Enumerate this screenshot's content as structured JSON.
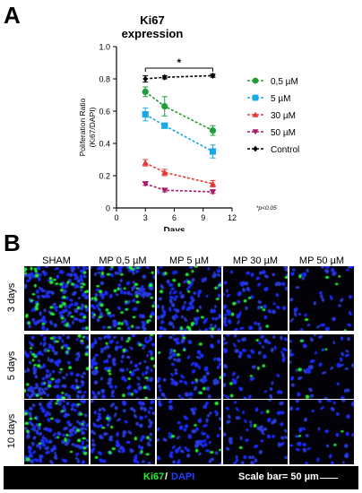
{
  "panel_a_letter": "A",
  "panel_b_letter": "B",
  "chart_data": {
    "type": "line",
    "title_line1": "Ki67",
    "title_line2": "expression",
    "xlabel": "Days",
    "ylabel_line1": "Poliferation Ratio",
    "ylabel_line2": "(Ki67/DAPI)",
    "xlim": [
      0,
      12
    ],
    "ylim": [
      0,
      1.0
    ],
    "x_ticks": [
      0,
      3,
      6,
      9,
      12
    ],
    "y_ticks": [
      0,
      0.2,
      0.4,
      0.6,
      0.8,
      1.0
    ],
    "x_tick_labels": [
      "0",
      "3",
      "6",
      "9",
      "12"
    ],
    "y_tick_labels": [
      "0",
      "0.2",
      "0.4",
      "0.6",
      "0.8",
      "1.0"
    ],
    "x": [
      3,
      5,
      10
    ],
    "series": [
      {
        "name": "0,5 µM",
        "color": "#1e9e3a",
        "marker": "circle",
        "values": [
          0.72,
          0.63,
          0.48
        ],
        "errors": [
          0.03,
          0.06,
          0.03
        ]
      },
      {
        "name": "5 µM",
        "color": "#1aa8e6",
        "marker": "square",
        "values": [
          0.58,
          0.51,
          0.35
        ],
        "errors": [
          0.04,
          0.01,
          0.04
        ]
      },
      {
        "name": "30 µM",
        "color": "#e53935",
        "marker": "triangle-up",
        "values": [
          0.28,
          0.22,
          0.15
        ],
        "errors": [
          0.02,
          0.02,
          0.02
        ]
      },
      {
        "name": "50 µM",
        "color": "#a8186a",
        "marker": "triangle-down",
        "values": [
          0.15,
          0.11,
          0.1
        ],
        "errors": [
          0.01,
          0.01,
          0.01
        ]
      },
      {
        "name": "Control",
        "color": "#000000",
        "marker": "diamond",
        "values": [
          0.8,
          0.81,
          0.82
        ],
        "errors": [
          0.02,
          0.01,
          0.01
        ]
      }
    ],
    "significance_bracket": {
      "from_x": 3,
      "to_x": 10,
      "label": "*"
    },
    "footnote": "*p<0.05",
    "legend_placement": "right",
    "grid": false
  },
  "micrograph_panel": {
    "column_labels": [
      "SHAM",
      "MP 0,5 µM",
      "MP 5 µM",
      "MP 30 µM",
      "MP 50 µM"
    ],
    "row_labels": [
      "3 days",
      "5 days",
      "10 days"
    ],
    "colors": {
      "nuclei": "#1a2cff",
      "ki67": "#22ee33",
      "background": "#020208"
    }
  },
  "footer": {
    "ki67_label": "Ki67",
    "slash": "/",
    "dapi_label": "DAPI",
    "scale_label": "Scale bar= 50 µm"
  }
}
